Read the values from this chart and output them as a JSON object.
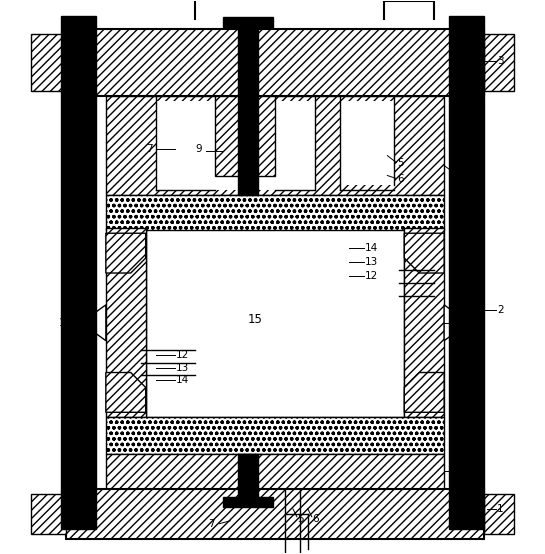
{
  "fig_width": 5.45,
  "fig_height": 5.54,
  "dpi": 100,
  "bg_color": "#ffffff"
}
